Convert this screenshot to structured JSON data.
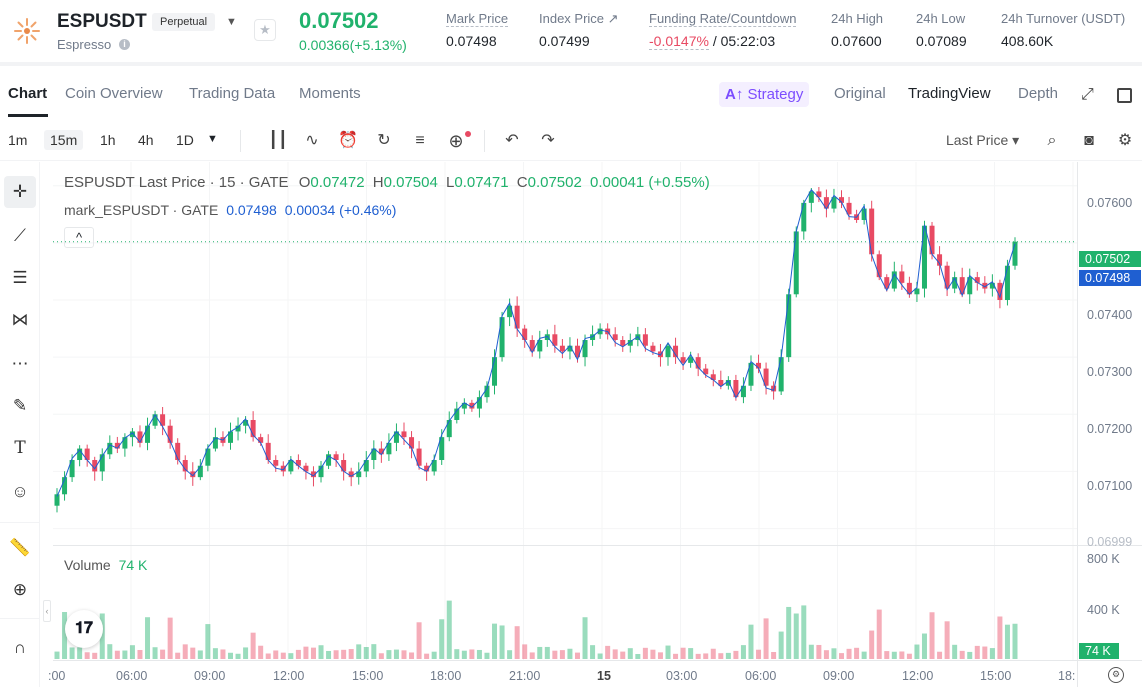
{
  "header": {
    "symbol": "ESPUSDT",
    "contract_type": "Perpetual",
    "sub_name": "Espresso",
    "last_price": "0.07502",
    "change": "0.00366(+5.13%)",
    "stats": [
      {
        "label": "Mark Price",
        "value": "0.07498"
      },
      {
        "label": "Index Price ↗",
        "value": "0.07499"
      },
      {
        "label": "Funding Rate/Countdown",
        "value_a": "-0.0147%",
        "value_b": " / 05:22:03"
      },
      {
        "label": "24h High",
        "value": "0.07600"
      },
      {
        "label": "24h Low",
        "value": "0.07089"
      },
      {
        "label": "24h Turnover (USDT)",
        "value": "408.60K"
      }
    ],
    "colors": {
      "up": "#20b26c",
      "down": "#e84a63",
      "accent": "#7c4dff"
    }
  },
  "tabs": {
    "left": [
      "Chart",
      "Coin Overview",
      "Trading Data",
      "Moments"
    ],
    "strategy": "Strategy",
    "right": [
      "Original",
      "TradingView",
      "Depth"
    ]
  },
  "toolbar": {
    "intervals": [
      "1m",
      "15m",
      "1h",
      "4h",
      "1D"
    ],
    "price_source": "Last Price ▾",
    "icons": [
      "candles-icon",
      "indicators-icon",
      "alert-icon",
      "replay-icon",
      "settings-list-icon",
      "add-icon",
      "undo-icon",
      "redo-icon",
      "search-icon",
      "camera-icon",
      "gear-icon"
    ]
  },
  "legend": {
    "main": "ESPUSDT Last Price · 15 · GATE",
    "o_label": "O",
    "o": "0.07472",
    "h_label": "H",
    "h": "0.07504",
    "l_label": "L",
    "l": "0.07471",
    "c_label": "C",
    "c": "0.07502",
    "chg": "0.00041 (+0.55%)",
    "mark_label": "mark_ESPUSDT · GATE",
    "mark_price": "0.07498",
    "mark_chg": "0.00034 (+0.46%)",
    "volume_label": "Volume",
    "volume_value": "74 K",
    "collapse": "^"
  },
  "price_axis": [
    "0.07600",
    "0.07500",
    "0.07400",
    "0.07300",
    "0.07200",
    "0.07100",
    "0.06999"
  ],
  "price_tags": {
    "last": "0.07502",
    "mark": "0.07498",
    "volume": "74 K"
  },
  "volume_axis": [
    "800 K",
    "400 K"
  ],
  "time_axis": [
    ":00",
    "06:00",
    "09:00",
    "12:00",
    "15:00",
    "18:00",
    "21:00",
    "15",
    "03:00",
    "06:00",
    "09:00",
    "12:00",
    "15:00",
    "18:"
  ],
  "chart_data": {
    "type": "candlestick",
    "title": "ESPUSDT Last Price · 15 · GATE",
    "ylim": [
      0.0698,
      0.0761
    ],
    "close": [
      0.0706,
      0.0709,
      0.0712,
      0.0714,
      0.0712,
      0.071,
      0.0713,
      0.0715,
      0.0714,
      0.0716,
      0.0717,
      0.0715,
      0.0718,
      0.072,
      0.0718,
      0.0715,
      0.0712,
      0.071,
      0.0709,
      0.0711,
      0.0714,
      0.0716,
      0.0715,
      0.0717,
      0.0718,
      0.0719,
      0.0716,
      0.0715,
      0.0712,
      0.0711,
      0.071,
      0.0712,
      0.0711,
      0.071,
      0.0709,
      0.0711,
      0.0713,
      0.0712,
      0.071,
      0.0709,
      0.071,
      0.0712,
      0.0714,
      0.0713,
      0.0715,
      0.0717,
      0.0716,
      0.0714,
      0.0711,
      0.071,
      0.0712,
      0.0716,
      0.0719,
      0.0721,
      0.0722,
      0.0721,
      0.0723,
      0.0725,
      0.073,
      0.0737,
      0.0739,
      0.0735,
      0.0733,
      0.0731,
      0.0733,
      0.0734,
      0.0732,
      0.0731,
      0.0732,
      0.073,
      0.0733,
      0.0734,
      0.0735,
      0.0734,
      0.0733,
      0.0732,
      0.0733,
      0.0734,
      0.0732,
      0.0731,
      0.073,
      0.0732,
      0.073,
      0.0729,
      0.073,
      0.0728,
      0.0727,
      0.0726,
      0.0725,
      0.0726,
      0.0723,
      0.0725,
      0.0729,
      0.0728,
      0.0725,
      0.0724,
      0.073,
      0.0741,
      0.0752,
      0.0757,
      0.0759,
      0.0758,
      0.0756,
      0.0758,
      0.0757,
      0.0755,
      0.0754,
      0.0756,
      0.0748,
      0.0744,
      0.0742,
      0.0745,
      0.0743,
      0.0741,
      0.0742,
      0.0753,
      0.0748,
      0.0746,
      0.0742,
      0.0744,
      0.0741,
      0.0744,
      0.0743,
      0.0742,
      0.0743,
      0.074,
      0.0746,
      0.07502
    ],
    "volume_max_k": 800,
    "volume_last_k": 74,
    "mark_line": true
  }
}
